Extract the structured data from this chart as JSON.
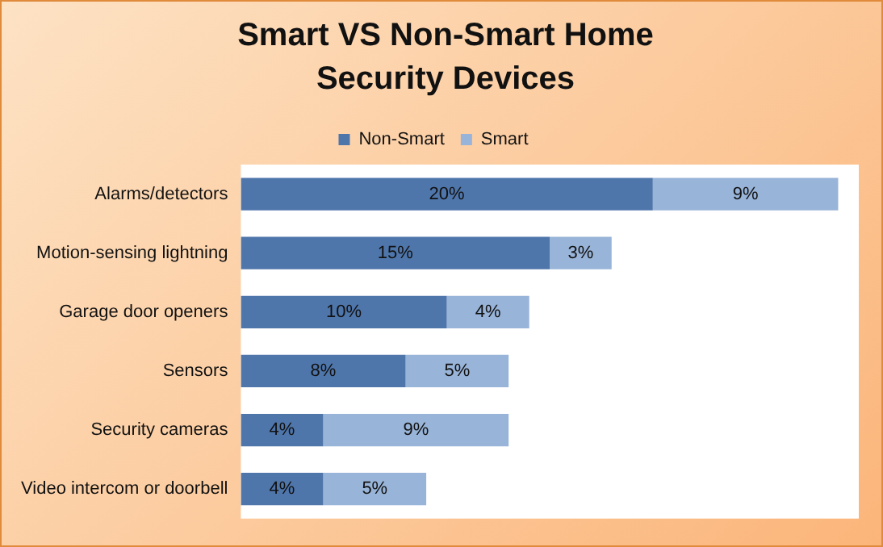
{
  "chart_data": {
    "type": "bar",
    "orientation": "horizontal",
    "stacked": true,
    "title": "Smart VS Non-Smart Home Security Devices",
    "categories": [
      "Alarms/detectors",
      "Motion-sensing lightning",
      "Garage door openers",
      "Sensors",
      "Security cameras",
      "Video intercom or doorbell"
    ],
    "series": [
      {
        "name": "Non-Smart",
        "color": "#4f76ab",
        "values": [
          20,
          15,
          10,
          8,
          4,
          4
        ],
        "value_labels": [
          "20%",
          "15%",
          "10%",
          "8%",
          "4%",
          "4%"
        ]
      },
      {
        "name": "Smart",
        "color": "#98b4d8",
        "values": [
          9,
          3,
          4,
          5,
          9,
          5
        ],
        "value_labels": [
          "9%",
          "3%",
          "4%",
          "5%",
          "9%",
          "5%"
        ]
      }
    ],
    "legend": "top",
    "grid": false
  }
}
